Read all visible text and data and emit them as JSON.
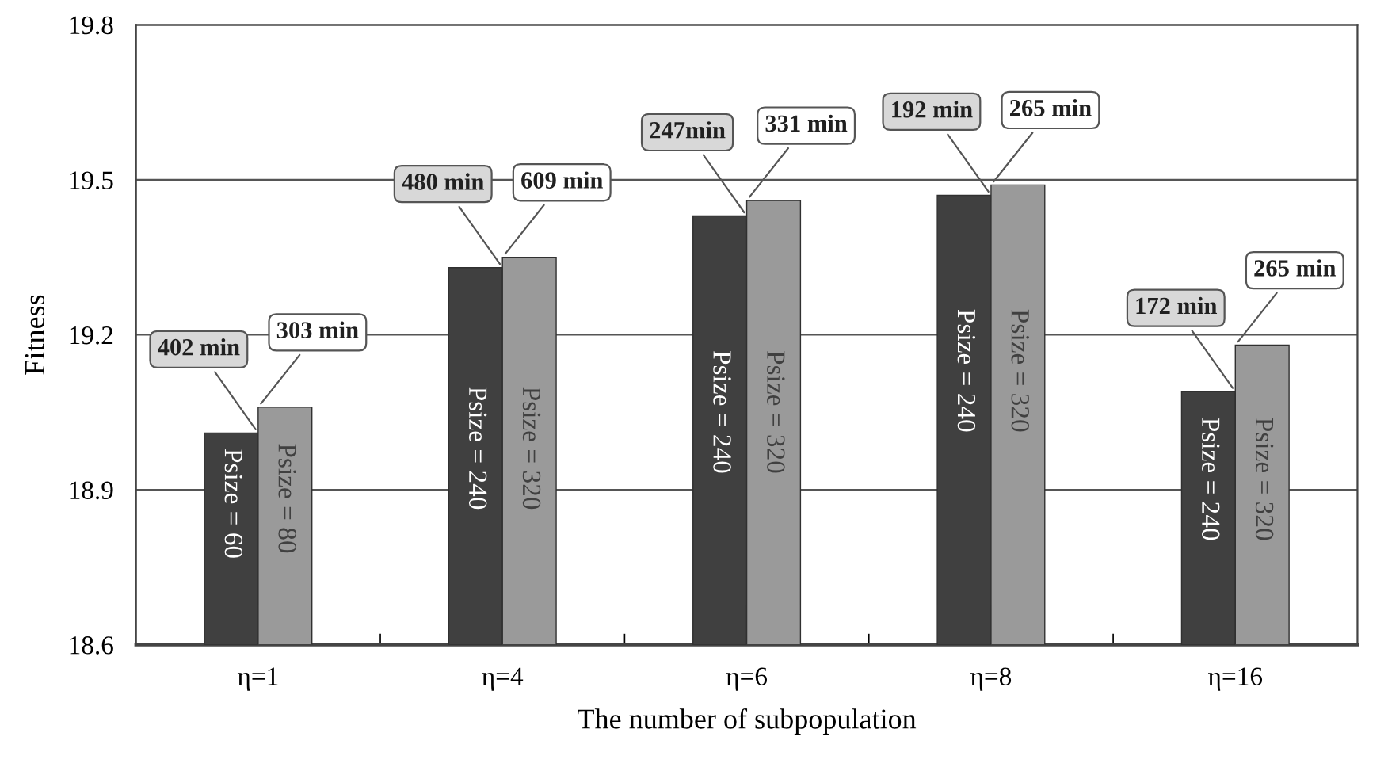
{
  "chart_data": {
    "type": "bar",
    "xlabel": "The number of subpopulation",
    "ylabel": "Fitness",
    "categories": [
      "η=1",
      "η=4",
      "η=6",
      "η=8",
      "η=16"
    ],
    "series": [
      {
        "color": "#404040",
        "values": [
          19.01,
          19.33,
          19.43,
          19.47,
          19.09
        ]
      },
      {
        "color": "#9a9a9a",
        "values": [
          19.06,
          19.35,
          19.46,
          19.49,
          19.18
        ]
      }
    ],
    "annotations": [
      {
        "text": "402 min",
        "x": "η=1",
        "y": 19.01
      },
      {
        "text": "303 min",
        "x": "η=1",
        "y": 19.06
      },
      {
        "text": "480 min",
        "x": "η=4",
        "y": 19.33
      },
      {
        "text": "609 min",
        "x": "η=4",
        "y": 19.35
      },
      {
        "text": "247min",
        "x": "η=6",
        "y": 19.43
      },
      {
        "text": "331 min",
        "x": "η=6",
        "y": 19.46
      },
      {
        "text": "192 min",
        "x": "η=8",
        "y": 19.47
      },
      {
        "text": "265 min",
        "x": "η=8",
        "y": 19.49
      },
      {
        "text": "172 min",
        "x": "η=16",
        "y": 19.09
      },
      {
        "text": "265 min",
        "x": "η=16",
        "y": 19.18
      },
      {
        "text": "Psize = 60",
        "x": "η=1",
        "y": 18.98
      },
      {
        "text": "Psize = 80",
        "x": "η=1",
        "y": 18.99
      },
      {
        "text": "Psize = 240",
        "x": "η=4",
        "y": 19.1
      },
      {
        "text": "Psize = 320",
        "x": "η=4",
        "y": 19.1
      },
      {
        "text": "Psize = 240",
        "x": "η=6",
        "y": 19.17
      },
      {
        "text": "Psize = 320",
        "x": "η=6",
        "y": 19.17
      },
      {
        "text": "Psize = 240",
        "x": "η=8",
        "y": 19.25
      },
      {
        "text": "Psize = 320",
        "x": "η=8",
        "y": 19.25
      },
      {
        "text": "Psize = 240",
        "x": "η=16",
        "y": 19.04
      },
      {
        "text": "Psize = 320",
        "x": "η=16",
        "y": 19.04
      }
    ],
    "ylim": [
      18.6,
      19.8
    ],
    "yticks": [
      18.6,
      18.9,
      19.2,
      19.5,
      19.8
    ],
    "grid": "y"
  }
}
